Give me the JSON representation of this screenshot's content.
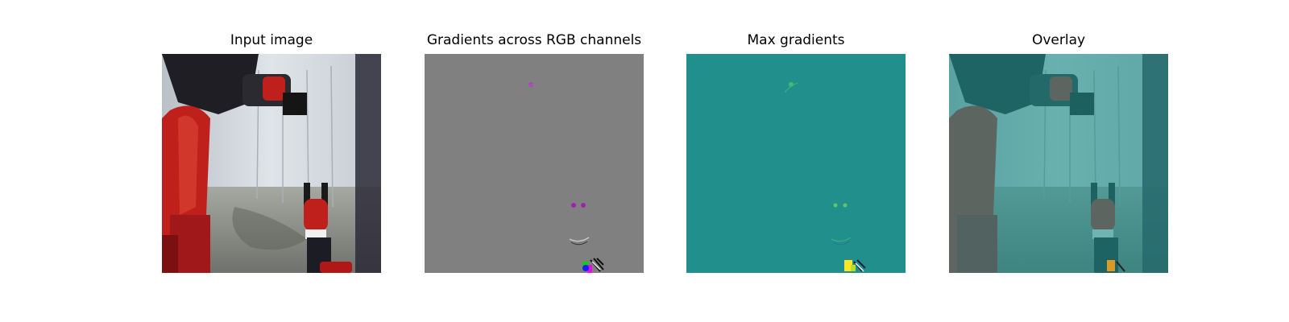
{
  "figure": {
    "panels": [
      {
        "title": "Input image"
      },
      {
        "title": "Gradients across RGB channels"
      },
      {
        "title": "Max gradients"
      },
      {
        "title": "Overlay"
      }
    ]
  },
  "colors": {
    "gradient_gray": "#808080",
    "max_gradient_teal": "#21908c",
    "robot_red": "#c0201c",
    "robot_dark": "#2a2a30",
    "wall_light": "#d8dde0",
    "floor_gray": "#8e8f88",
    "overlay_tint": "#3f8d8a"
  }
}
